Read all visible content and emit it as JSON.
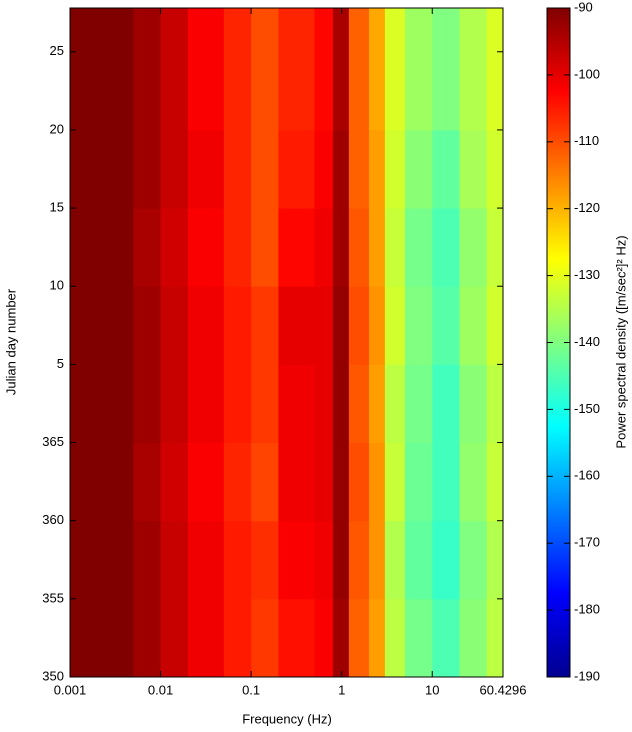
{
  "chart_data": {
    "type": "heatmap",
    "x_label": "Frequency (Hz)",
    "y_label": "Julian day number",
    "colorbar_label": "Power spectral density ([m/sec²]² Hz)",
    "xscale": "log",
    "xlim": [
      0.001,
      60.4296
    ],
    "xticks": [
      0.001,
      0.01,
      0.1,
      1,
      10,
      60.4296
    ],
    "ylim": [
      350,
      392.8
    ],
    "yticks": [
      350,
      355,
      360,
      365,
      {
        "value": 370,
        "label": "5"
      },
      {
        "value": 375,
        "label": "10"
      },
      {
        "value": 380,
        "label": "15"
      },
      {
        "value": 385,
        "label": "20"
      },
      {
        "value": 390,
        "label": "25"
      }
    ],
    "x_bins": [
      0.001,
      0.005,
      0.01,
      0.02,
      0.05,
      0.1,
      0.2,
      0.5,
      0.8,
      1.2,
      2,
      3,
      5,
      10,
      20,
      40,
      60.4296
    ],
    "y_bins": [
      350,
      355,
      360,
      365,
      370,
      375,
      380,
      385,
      392.8
    ],
    "values": [
      [
        -90,
        -93,
        -97,
        -101,
        -105,
        -108,
        -104,
        -102,
        -93,
        -112,
        -118,
        -134,
        -141,
        -145,
        -139,
        -134
      ],
      [
        -90,
        -93,
        -97,
        -101,
        -105,
        -107,
        -102,
        -101,
        -92,
        -111,
        -117,
        -135,
        -143,
        -147,
        -140,
        -135
      ],
      [
        -90,
        -94,
        -98,
        -102,
        -106,
        -109,
        -101,
        -100,
        -92,
        -110,
        -117,
        -133,
        -142,
        -146,
        -138,
        -133
      ],
      [
        -90,
        -93,
        -97,
        -101,
        -105,
        -108,
        -101,
        -100,
        -92,
        -111,
        -118,
        -134,
        -141,
        -146,
        -139,
        -134
      ],
      [
        -90,
        -93,
        -97,
        -101,
        -105,
        -108,
        -100,
        -100,
        -92,
        -110,
        -117,
        -132,
        -140,
        -144,
        -137,
        -132
      ],
      [
        -90,
        -94,
        -98,
        -102,
        -106,
        -110,
        -103,
        -101,
        -93,
        -111,
        -118,
        -133,
        -141,
        -145,
        -138,
        -133
      ],
      [
        -90,
        -93,
        -97,
        -101,
        -106,
        -110,
        -105,
        -102,
        -93,
        -112,
        -118,
        -132,
        -139,
        -143,
        -136,
        -132
      ],
      [
        -90,
        -93,
        -97,
        -102,
        -106,
        -110,
        -106,
        -103,
        -94,
        -112,
        -119,
        -131,
        -137,
        -140,
        -135,
        -131
      ]
    ],
    "clim": [
      -190,
      -90
    ],
    "cticks": [
      -90,
      -100,
      -110,
      -120,
      -130,
      -140,
      -150,
      -160,
      -170,
      -180,
      -190
    ],
    "colormap": [
      "#00008f",
      "#0000ff",
      "#0080ff",
      "#00ffff",
      "#80ff80",
      "#ffff00",
      "#ff8000",
      "#ff0000",
      "#800000"
    ]
  }
}
